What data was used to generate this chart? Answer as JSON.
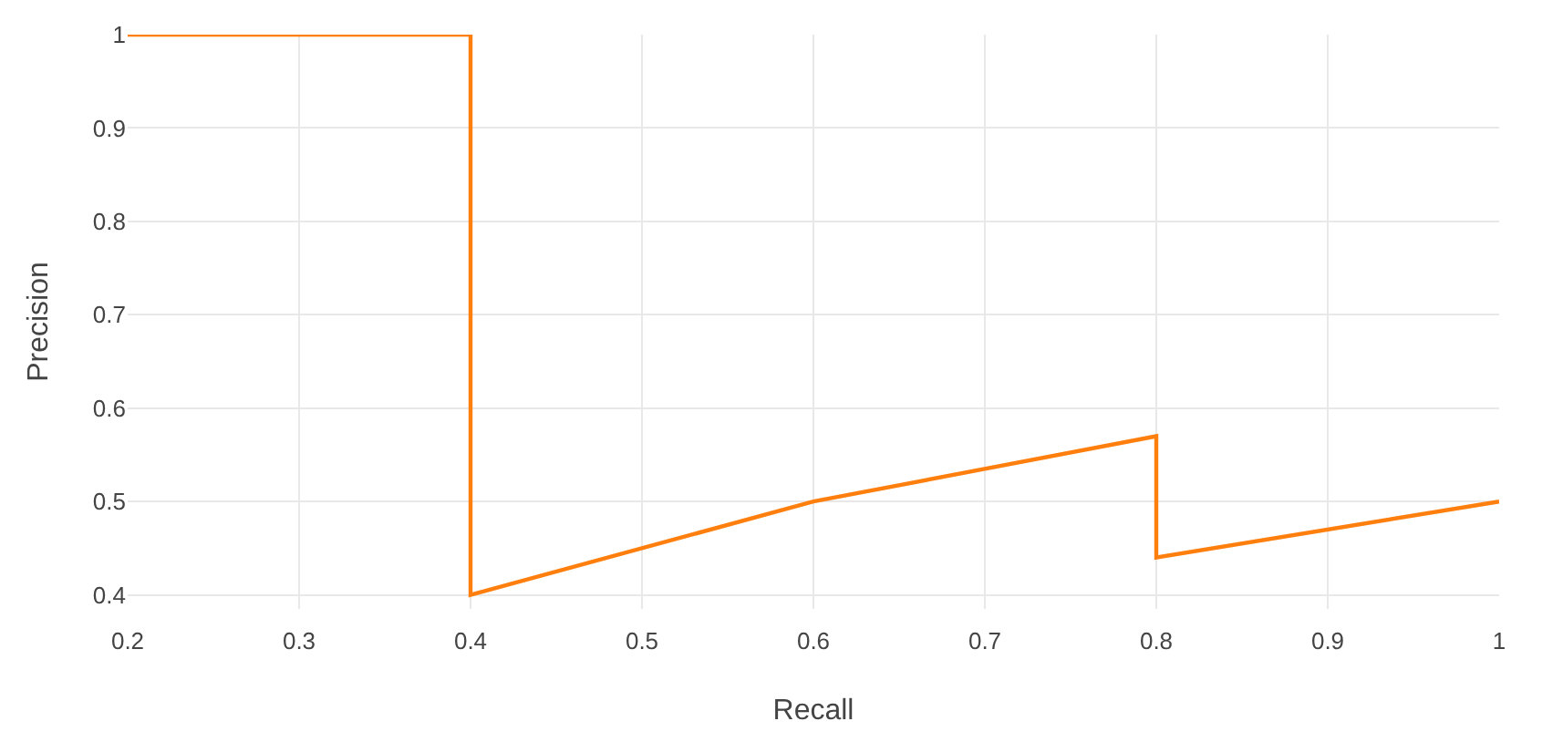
{
  "chart_data": {
    "type": "line",
    "xlabel": "Recall",
    "ylabel": "Precision",
    "x": [
      0.2,
      0.4,
      0.4,
      0.6,
      0.8,
      0.8,
      1.0
    ],
    "series": [
      {
        "color": "#ff7f0e",
        "values": [
          1.0,
          1.0,
          0.4,
          0.5,
          0.57,
          0.44,
          0.5
        ]
      }
    ],
    "xlim": [
      0.2,
      1
    ],
    "xticks": [
      0.2,
      0.3,
      0.4,
      0.5,
      0.6,
      0.7,
      0.8,
      0.9,
      1
    ],
    "ylim": [
      0.385,
      1
    ],
    "yticks": [
      0.4,
      0.5,
      0.6,
      0.7,
      0.8,
      0.9,
      1
    ],
    "grid": true,
    "marker": "none",
    "line_style": "solid"
  }
}
